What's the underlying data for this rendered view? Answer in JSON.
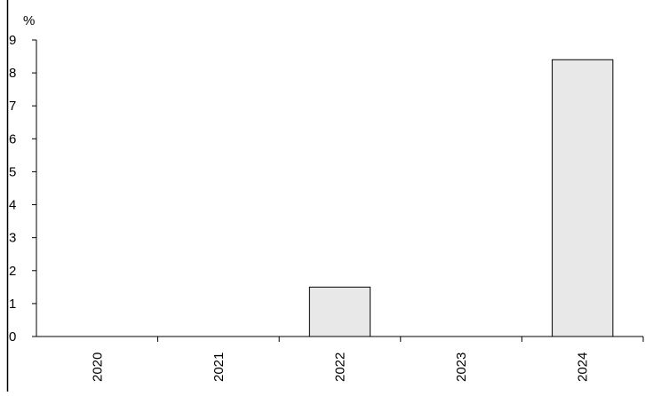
{
  "chart_data": {
    "type": "bar",
    "categories": [
      "2020",
      "2021",
      "2022",
      "2023",
      "2024"
    ],
    "values": [
      0,
      0,
      1.5,
      0,
      8.4
    ],
    "title": "",
    "xlabel": "",
    "ylabel": "%",
    "ylim": [
      0,
      9
    ],
    "yticks": [
      0,
      1,
      2,
      3,
      4,
      5,
      6,
      7,
      8,
      9
    ],
    "grid": false,
    "legend": "none",
    "colors": {
      "bar_fill": "#e8e8e8",
      "bar_stroke": "#000000",
      "axis": "#000000",
      "frame": "#000000"
    }
  }
}
